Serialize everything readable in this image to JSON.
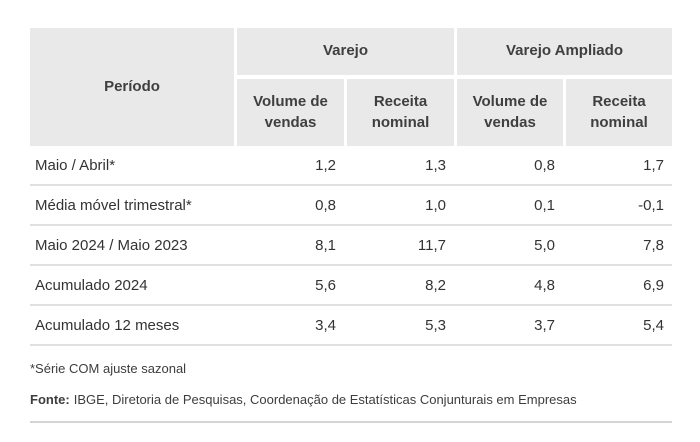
{
  "colors": {
    "header_bg": "#e9e9e9",
    "header_text": "#3f3f3f",
    "body_text": "#333333",
    "row_separator": "#e0e0e0",
    "bottom_rule": "#d4d4d4"
  },
  "table": {
    "period_header": "Período",
    "group_headers": [
      {
        "label": "Varejo"
      },
      {
        "label": "Varejo Ampliado"
      }
    ],
    "sub_headers": [
      "Volume de vendas",
      "Receita nominal",
      "Volume de vendas",
      "Receita nominal"
    ]
  },
  "chart_data": {
    "type": "table",
    "column_groups": [
      "Varejo",
      "Varejo Ampliado"
    ],
    "columns": [
      "Período",
      "Varejo — Volume de vendas",
      "Varejo — Receita nominal",
      "Varejo Ampliado — Volume de vendas",
      "Varejo Ampliado — Receita nominal"
    ],
    "rows": [
      {
        "period": "Maio / Abril*",
        "values": [
          "1,2",
          "1,3",
          "0,8",
          "1,7"
        ]
      },
      {
        "period": "Média móvel trimestral*",
        "values": [
          "0,8",
          "1,0",
          "0,1",
          "-0,1"
        ]
      },
      {
        "period": "Maio 2024 / Maio 2023",
        "values": [
          "8,1",
          "11,7",
          "5,0",
          "7,8"
        ]
      },
      {
        "period": "Acumulado 2024",
        "values": [
          "5,6",
          "8,2",
          "4,8",
          "6,9"
        ]
      },
      {
        "period": "Acumulado 12 meses",
        "values": [
          "3,4",
          "5,3",
          "3,7",
          "5,4"
        ]
      }
    ],
    "values_numeric": [
      [
        1.2,
        1.3,
        0.8,
        1.7
      ],
      [
        0.8,
        1.0,
        0.1,
        -0.1
      ],
      [
        8.1,
        11.7,
        5.0,
        7.8
      ],
      [
        5.6,
        8.2,
        4.8,
        6.9
      ],
      [
        3.4,
        5.3,
        3.7,
        5.4
      ]
    ]
  },
  "footnotes": {
    "note": "*Série COM ajuste sazonal",
    "source_label": "Fonte:",
    "source_text": "IBGE, Diretoria de Pesquisas, Coordenação de Estatísticas Conjunturais em Empresas"
  }
}
